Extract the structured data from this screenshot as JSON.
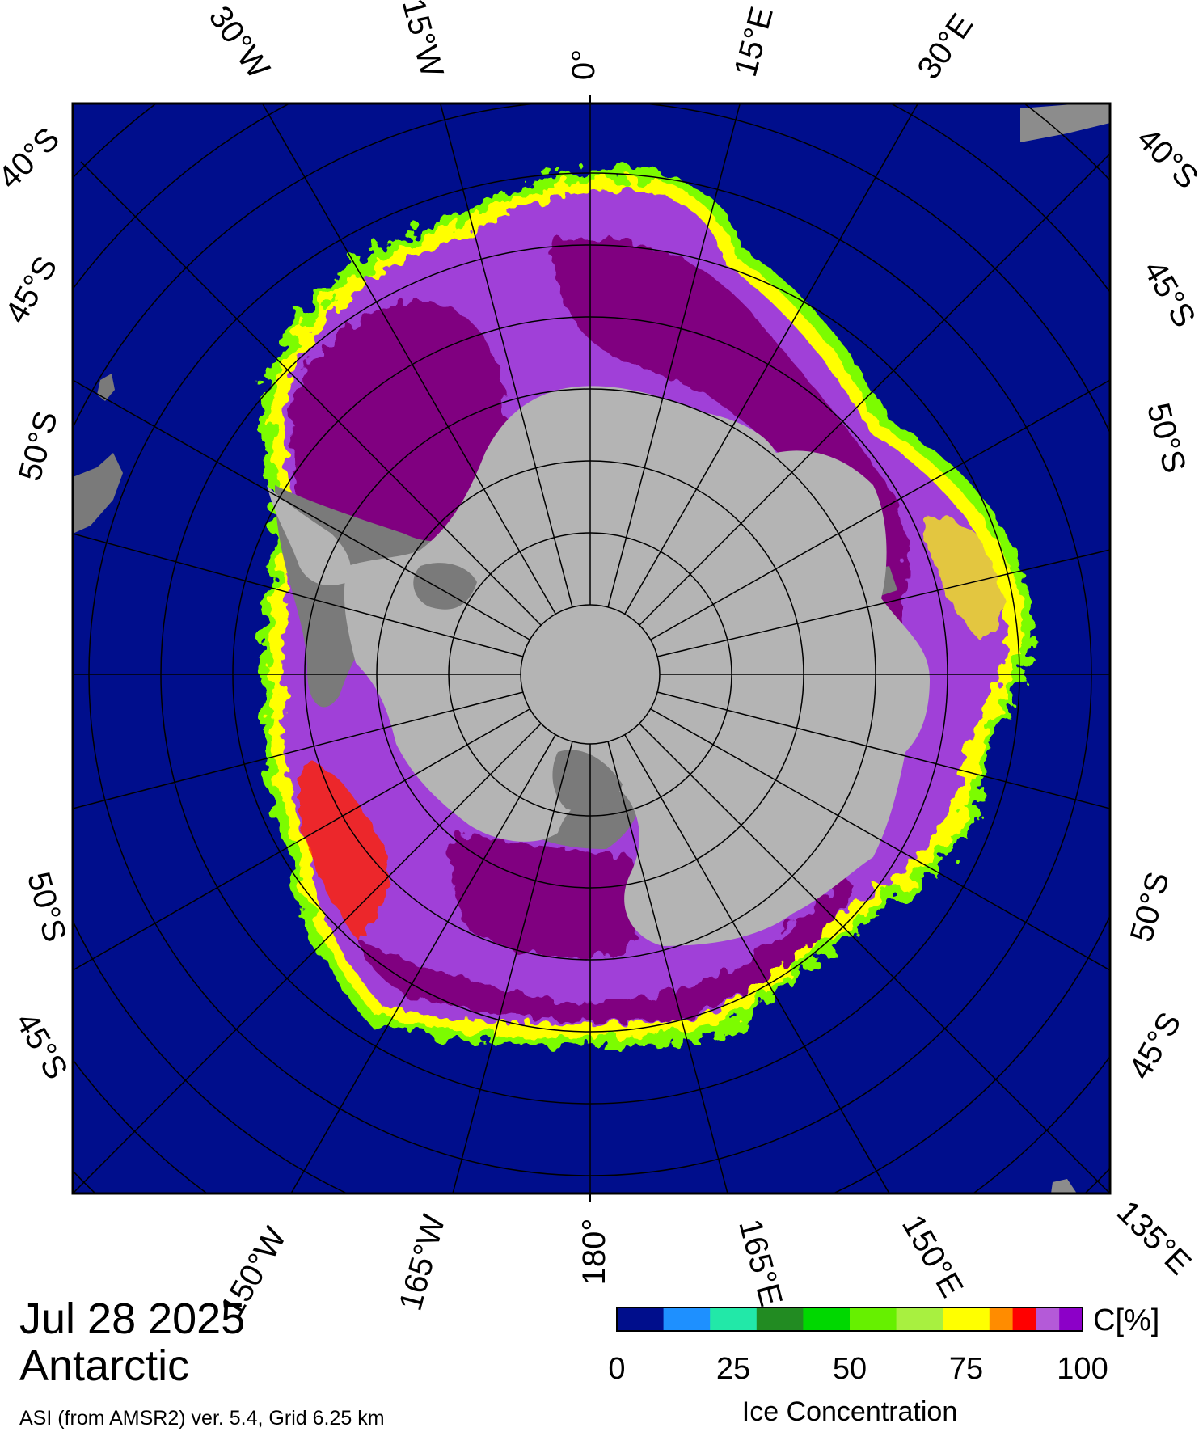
{
  "date": "Jul 28 2025",
  "region": "Antarctic",
  "source_note": "ASI (from AMSR2) ver. 5.4,  Grid 6.25 km",
  "longitude_labels_top": [
    "30°W",
    "15°W",
    "0°",
    "15°E",
    "30°E"
  ],
  "longitude_labels_bottom": [
    "150°W",
    "165°W",
    "180°",
    "165°E",
    "150°E",
    "135°E"
  ],
  "latitude_labels_left": [
    "40°S",
    "45°S",
    "50°S",
    "50°S",
    "45°S"
  ],
  "latitude_labels_right": [
    "40°S",
    "45°S",
    "50°S",
    "50°S",
    "45°S"
  ],
  "colorbar": {
    "unit_label": "C[%]",
    "title": "Ice Concentration",
    "ticks": [
      "0",
      "25",
      "50",
      "75",
      "100"
    ],
    "bins": [
      {
        "from": 0,
        "to": 10,
        "color": "#000e8c"
      },
      {
        "from": 10,
        "to": 15,
        "color": "#1e90ff"
      },
      {
        "from": 15,
        "to": 20,
        "color": "#1e90ff"
      },
      {
        "from": 20,
        "to": 30,
        "color": "#22e8a8"
      },
      {
        "from": 30,
        "to": 40,
        "color": "#228b22"
      },
      {
        "from": 40,
        "to": 50,
        "color": "#00d800"
      },
      {
        "from": 50,
        "to": 60,
        "color": "#66f000"
      },
      {
        "from": 60,
        "to": 70,
        "color": "#a8f040"
      },
      {
        "from": 70,
        "to": 80,
        "color": "#ffff00"
      },
      {
        "from": 80,
        "to": 85,
        "color": "#ff8c00"
      },
      {
        "from": 85,
        "to": 90,
        "color": "#ff0000"
      },
      {
        "from": 90,
        "to": 95,
        "color": "#b45ad8"
      },
      {
        "from": 95,
        "to": 100,
        "color": "#8c00c8"
      }
    ]
  },
  "colors": {
    "ocean": "#000e8c",
    "land": "#b4b4b4",
    "ice_shelf": "#7a7a7a",
    "ice_high": "#800080",
    "ice_mid": "#a040d8",
    "ice_edge_green": "#7cfc00",
    "ice_edge_yellow": "#ffff00",
    "ice_edge_red": "#ff2000"
  }
}
